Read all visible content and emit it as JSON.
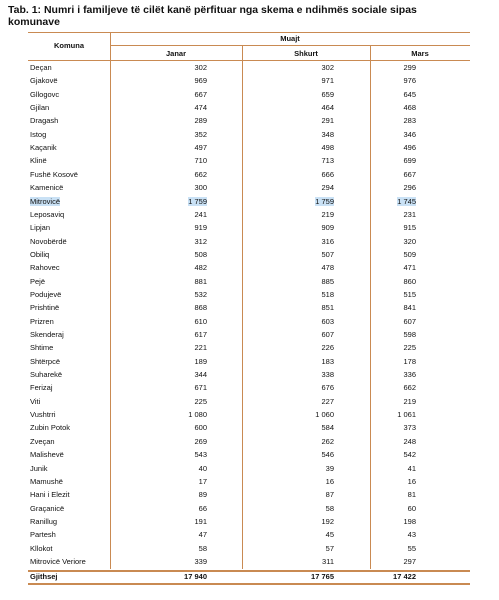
{
  "title": "Tab. 1:  Numri i familjeve të cilët kanë përfituar nga skema e ndihmës sociale sipas komunave",
  "table": {
    "header": {
      "row_label": "Komuna",
      "group": "Muajt",
      "columns": [
        "Janar",
        "Shkurt",
        "Mars"
      ]
    },
    "highlighted_rows": [
      10
    ],
    "rows": [
      [
        "Deçan",
        "302",
        "302",
        "299"
      ],
      [
        "Gjakovë",
        "969",
        "971",
        "976"
      ],
      [
        "Gllogovc",
        "667",
        "659",
        "645"
      ],
      [
        "Gjilan",
        "474",
        "464",
        "468"
      ],
      [
        "Dragash",
        "289",
        "291",
        "283"
      ],
      [
        "Istog",
        "352",
        "348",
        "346"
      ],
      [
        "Kaçanik",
        "497",
        "498",
        "496"
      ],
      [
        "Klinë",
        "710",
        "713",
        "699"
      ],
      [
        "Fushë Kosovë",
        "662",
        "666",
        "667"
      ],
      [
        "Kamenicë",
        "300",
        "294",
        "296"
      ],
      [
        "Mitrovicë",
        "1 759",
        "1 759",
        "1 745"
      ],
      [
        "Leposaviq",
        "241",
        "219",
        "231"
      ],
      [
        "Lipjan",
        "919",
        "909",
        "915"
      ],
      [
        "Novobërdë",
        "312",
        "316",
        "320"
      ],
      [
        "Obiliq",
        "508",
        "507",
        "509"
      ],
      [
        "Rahovec",
        "482",
        "478",
        "471"
      ],
      [
        "Pejë",
        "881",
        "885",
        "860"
      ],
      [
        "Podujevë",
        "532",
        "518",
        "515"
      ],
      [
        "Prishtinë",
        "868",
        "851",
        "841"
      ],
      [
        "Prizren",
        "610",
        "603",
        "607"
      ],
      [
        "Skenderaj",
        "617",
        "607",
        "598"
      ],
      [
        "Shtime",
        "221",
        "226",
        "225"
      ],
      [
        "Shtërpcë",
        "189",
        "183",
        "178"
      ],
      [
        "Suharekë",
        "344",
        "338",
        "336"
      ],
      [
        "Ferizaj",
        "671",
        "676",
        "662"
      ],
      [
        "Viti",
        "225",
        "227",
        "219"
      ],
      [
        "Vushtrri",
        "1 080",
        "1 060",
        "1 061"
      ],
      [
        "Zubin Potok",
        "600",
        "584",
        "373"
      ],
      [
        "Zveçan",
        "269",
        "262",
        "248"
      ],
      [
        "Malishevë",
        "543",
        "546",
        "542"
      ],
      [
        "Junik",
        "40",
        "39",
        "41"
      ],
      [
        "Mamushë",
        "17",
        "16",
        "16"
      ],
      [
        "Hani i Elezit",
        "89",
        "87",
        "81"
      ],
      [
        "Graçanicë",
        "66",
        "58",
        "60"
      ],
      [
        "Ranillug",
        "191",
        "192",
        "198"
      ],
      [
        "Partesh",
        "47",
        "45",
        "43"
      ],
      [
        "Kllokot",
        "58",
        "57",
        "55"
      ],
      [
        "Mitrovicë Veriore",
        "339",
        "311",
        "297"
      ]
    ],
    "total": [
      "Gjithsej",
      "17 940",
      "17 765",
      "17 422"
    ]
  }
}
